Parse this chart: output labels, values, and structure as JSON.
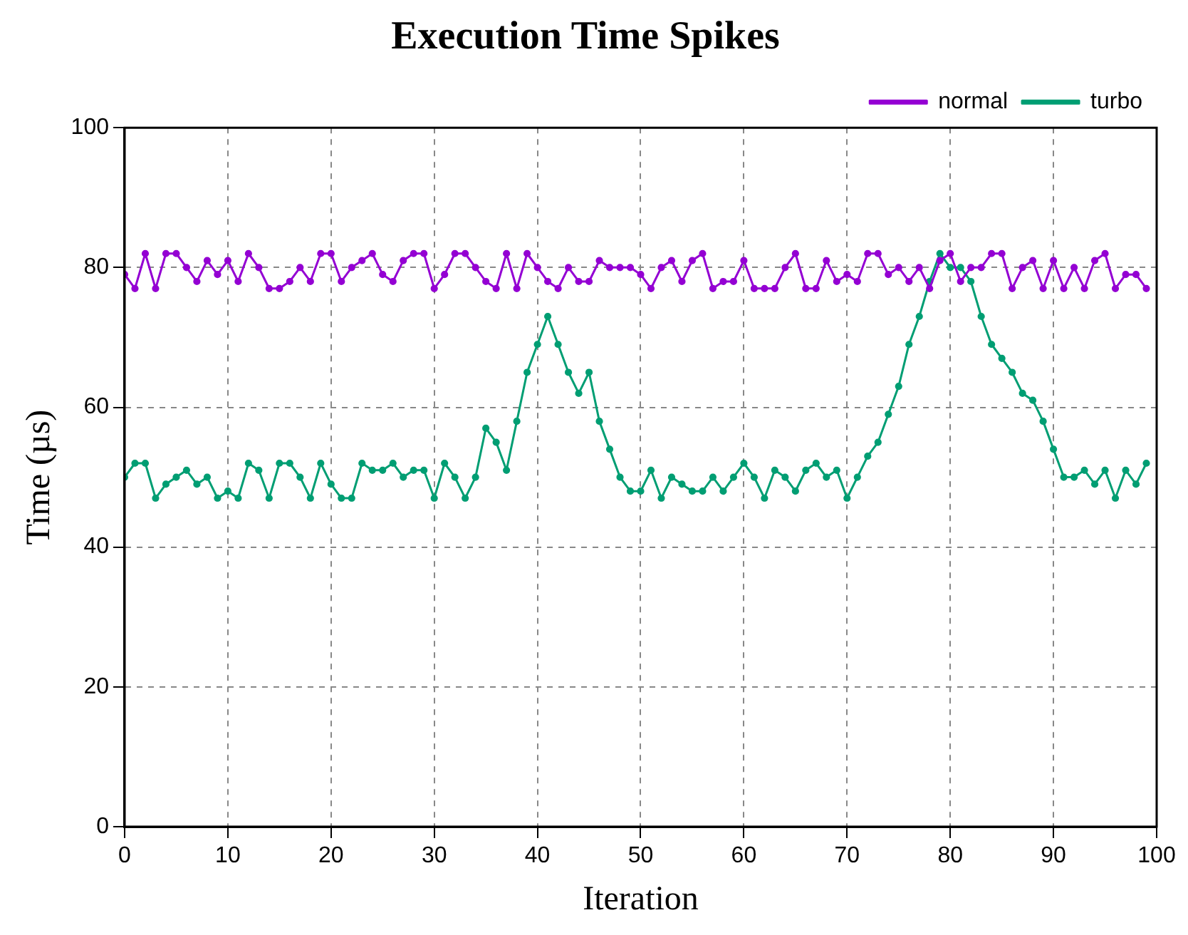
{
  "chart_data": {
    "type": "line",
    "title": "Execution Time Spikes",
    "xlabel": "Iteration",
    "ylabel": "Time (µs)",
    "x": [
      0,
      1,
      2,
      3,
      4,
      5,
      6,
      7,
      8,
      9,
      10,
      11,
      12,
      13,
      14,
      15,
      16,
      17,
      18,
      19,
      20,
      21,
      22,
      23,
      24,
      25,
      26,
      27,
      28,
      29,
      30,
      31,
      32,
      33,
      34,
      35,
      36,
      37,
      38,
      39,
      40,
      41,
      42,
      43,
      44,
      45,
      46,
      47,
      48,
      49,
      50,
      51,
      52,
      53,
      54,
      55,
      56,
      57,
      58,
      59,
      60,
      61,
      62,
      63,
      64,
      65,
      66,
      67,
      68,
      69,
      70,
      71,
      72,
      73,
      74,
      75,
      76,
      77,
      78,
      79,
      80,
      81,
      82,
      83,
      84,
      85,
      86,
      87,
      88,
      89,
      90,
      91,
      92,
      93,
      94,
      95,
      96,
      97,
      98,
      99
    ],
    "series": [
      {
        "name": "normal",
        "color": "#9400d3",
        "values": [
          79,
          77,
          82,
          77,
          82,
          82,
          80,
          78,
          81,
          79,
          81,
          78,
          82,
          80,
          77,
          77,
          78,
          80,
          78,
          82,
          82,
          78,
          80,
          81,
          82,
          79,
          78,
          81,
          82,
          82,
          77,
          79,
          82,
          82,
          80,
          78,
          77,
          82,
          77,
          82,
          80,
          78,
          77,
          80,
          78,
          78,
          81,
          80,
          80,
          80,
          79,
          77,
          80,
          81,
          78,
          81,
          82,
          77,
          78,
          78,
          81,
          77,
          77,
          77,
          80,
          82,
          77,
          77,
          81,
          78,
          79,
          78,
          82,
          82,
          79,
          80,
          78,
          80,
          77,
          81,
          82,
          78,
          80,
          80,
          82,
          82,
          77,
          80,
          81,
          77,
          81,
          77,
          80,
          77,
          81,
          82,
          77,
          79,
          79,
          77
        ]
      },
      {
        "name": "turbo",
        "color": "#009e73",
        "values": [
          50,
          52,
          52,
          47,
          49,
          50,
          51,
          49,
          50,
          47,
          48,
          47,
          52,
          51,
          47,
          52,
          52,
          50,
          47,
          52,
          49,
          47,
          47,
          52,
          51,
          51,
          52,
          50,
          51,
          51,
          47,
          52,
          50,
          47,
          50,
          57,
          55,
          51,
          58,
          65,
          69,
          73,
          69,
          65,
          62,
          65,
          58,
          54,
          50,
          48,
          48,
          51,
          47,
          50,
          49,
          48,
          48,
          50,
          48,
          50,
          52,
          50,
          47,
          51,
          50,
          48,
          51,
          52,
          50,
          51,
          47,
          50,
          53,
          55,
          59,
          63,
          69,
          73,
          78,
          82,
          80,
          80,
          78,
          73,
          69,
          67,
          65,
          62,
          61,
          58,
          54,
          50,
          50,
          51,
          49,
          51,
          47,
          51,
          49,
          52
        ]
      }
    ],
    "xlim": [
      0,
      100
    ],
    "xticks": [
      0,
      10,
      20,
      30,
      40,
      50,
      60,
      70,
      80,
      90,
      100
    ],
    "ylim": [
      0,
      100
    ],
    "yticks": [
      0,
      20,
      40,
      60,
      80,
      100
    ],
    "grid": true,
    "legend": "top right",
    "marker": "circle",
    "line_style": "solid"
  }
}
